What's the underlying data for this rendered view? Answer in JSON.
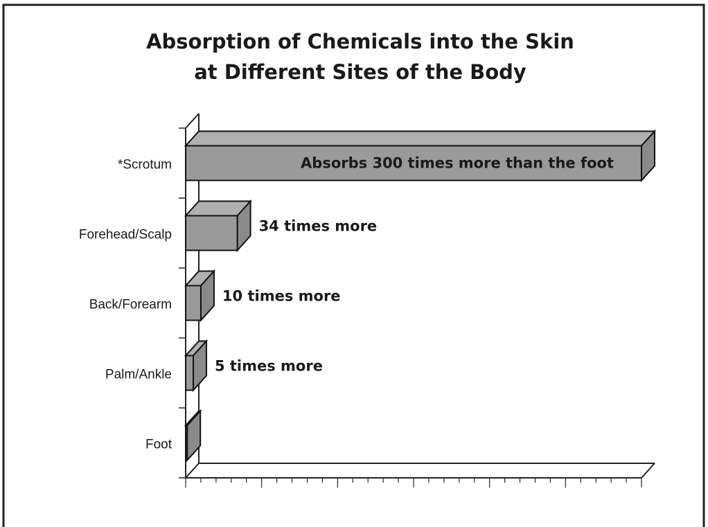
{
  "chart_data": {
    "type": "bar3d",
    "title": "Absorption of Chemicals into the Skin",
    "subtitle": "at Different Sites of the Body",
    "categories": [
      "*Scrotum",
      "Forehead/Scalp",
      "Back/Forearm",
      "Palm/Ankle",
      "Foot"
    ],
    "values": [
      300,
      34,
      10,
      5,
      1
    ],
    "value_labels": [
      "Absorbs 300 times more than the foot",
      "34 times more",
      "10 times more",
      "5 times more",
      null
    ],
    "color": "#9a9a9a",
    "xlim": [
      0,
      300
    ],
    "xticks": [
      0,
      10,
      20,
      30,
      40,
      50,
      60,
      70,
      80,
      90,
      100,
      110,
      120,
      130,
      140,
      150,
      160,
      170,
      180,
      190,
      200,
      210,
      220,
      230,
      240,
      250,
      260,
      270,
      280,
      290,
      300
    ]
  }
}
